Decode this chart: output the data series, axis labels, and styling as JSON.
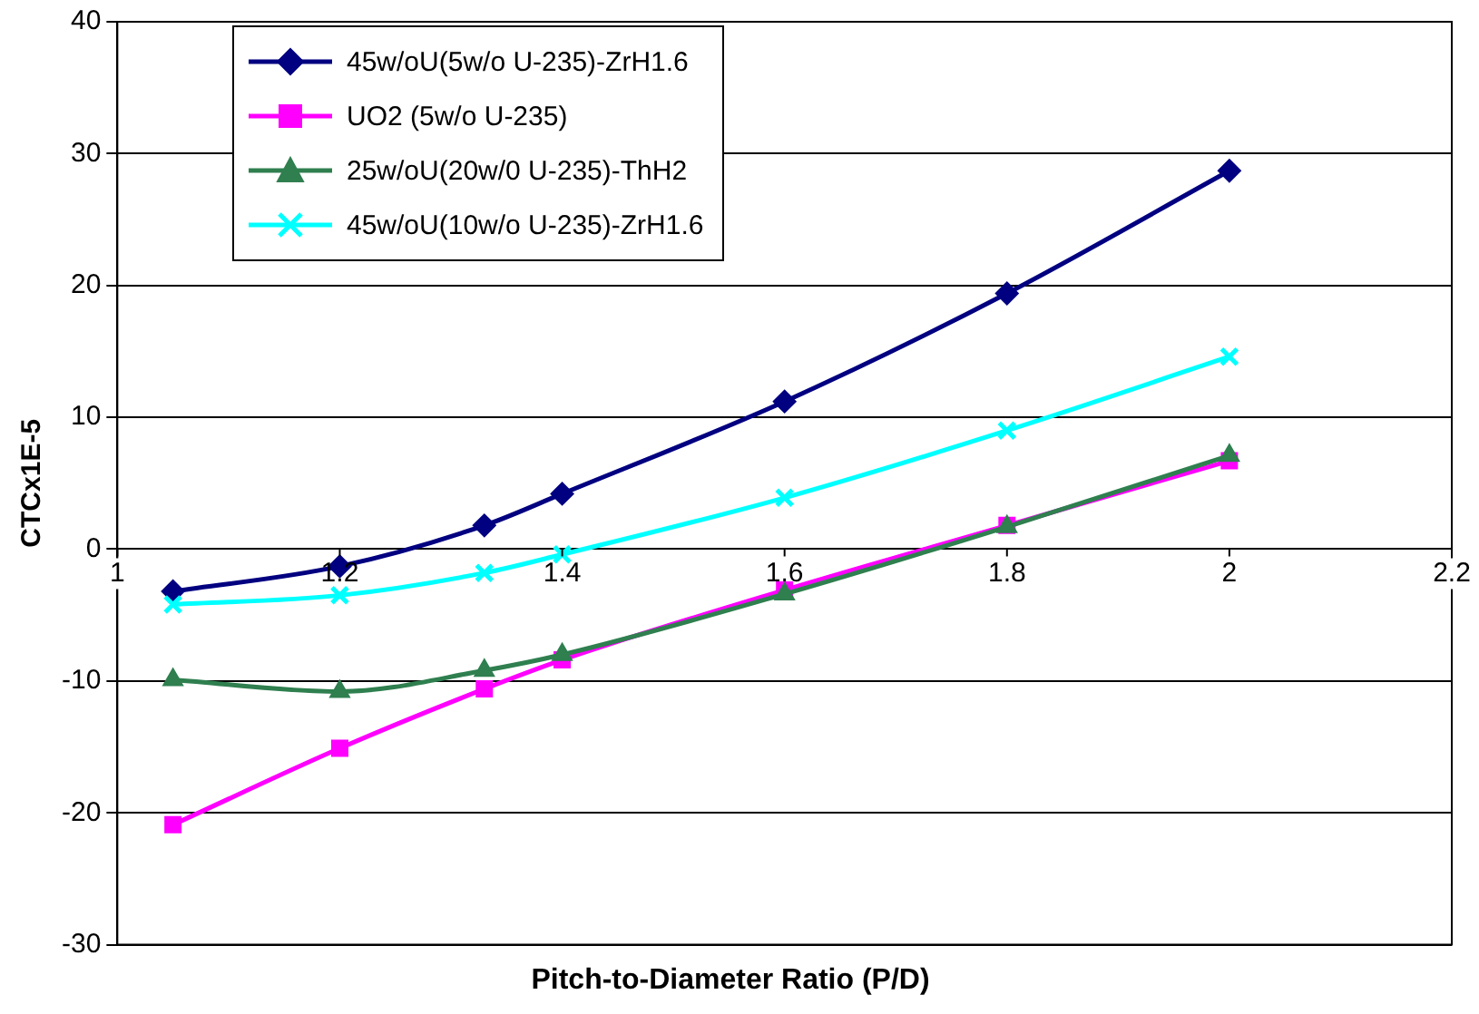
{
  "chart_data": {
    "type": "line",
    "xlabel": "Pitch-to-Diameter Ratio (P/D)",
    "ylabel": "CTCx1E-5",
    "x": [
      1.05,
      1.2,
      1.33,
      1.4,
      1.6,
      1.8,
      2.0
    ],
    "xlim": [
      1,
      2.2
    ],
    "xticks": [
      1,
      1.2,
      1.4,
      1.6,
      1.8,
      2,
      2.2
    ],
    "ylim": [
      -30,
      40
    ],
    "yticks": [
      -30,
      -20,
      -10,
      0,
      10,
      20,
      30,
      40
    ],
    "grid": "y",
    "legend": "top left",
    "line_style": "solid",
    "series": [
      {
        "name": "45w/oU(5w/o U-235)-ZrH1.6",
        "color": "#000080",
        "marker": "diamond",
        "values": [
          -3.2,
          -1.3,
          1.8,
          4.2,
          11.2,
          19.4,
          28.7
        ]
      },
      {
        "name": "UO2 (5w/o U-235)",
        "color": "#ff00ff",
        "marker": "square",
        "values": [
          -20.9,
          -15.1,
          -10.6,
          -8.4,
          -3.1,
          1.8,
          6.7
        ]
      },
      {
        "name": "25w/oU(20w/0 U-235)-ThH2",
        "color": "#2f7f4f",
        "marker": "triangle",
        "values": [
          -9.9,
          -10.8,
          -9.2,
          -8.0,
          -3.4,
          1.7,
          7.1
        ]
      },
      {
        "name": "45w/oU(10w/o U-235)-ZrH1.6",
        "color": "#00ffff",
        "marker": "cross",
        "values": [
          -4.2,
          -3.5,
          -1.8,
          -0.4,
          3.9,
          9.0,
          14.6
        ]
      }
    ]
  }
}
